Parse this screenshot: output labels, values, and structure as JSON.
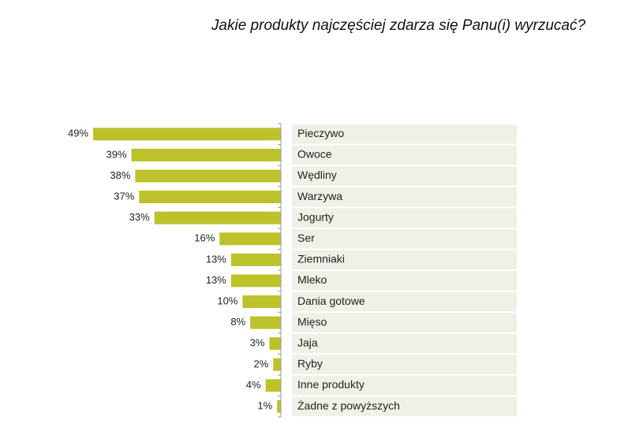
{
  "chart_data": {
    "type": "bar",
    "orientation": "horizontal",
    "title": "Jakie produkty najczęściej zdarza się Panu(i) wyrzucać?",
    "categories": [
      "Pieczywo",
      "Owoce",
      "Wędliny",
      "Warzywa",
      "Jogurty",
      "Ser",
      "Ziemniaki",
      "Mleko",
      "Dania gotowe",
      "Mięso",
      "Jaja",
      "Ryby",
      "Inne produkty",
      "Żadne z powyższych"
    ],
    "values": [
      49,
      39,
      38,
      37,
      33,
      16,
      13,
      13,
      10,
      8,
      3,
      2,
      4,
      1
    ],
    "value_labels": [
      "49%",
      "39%",
      "38%",
      "37%",
      "33%",
      "16%",
      "13%",
      "13%",
      "10%",
      "8%",
      "3%",
      "2%",
      "4%",
      "1%"
    ],
    "color": "#bcc22a"
  }
}
